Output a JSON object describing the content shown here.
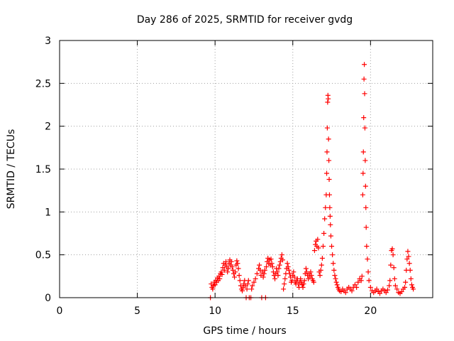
{
  "chart_data": {
    "type": "scatter",
    "title": "Day 286 of 2025, SRMTID for receiver gvdg",
    "xlabel": "GPS time / hours",
    "ylabel": "SRMTID / TECUs",
    "xlim": [
      0,
      24
    ],
    "ylim": [
      0,
      3
    ],
    "xticks": [
      0,
      5,
      10,
      15,
      20
    ],
    "yticks": [
      0,
      0.5,
      1,
      1.5,
      2,
      2.5,
      3
    ],
    "grid": true,
    "marker": "+",
    "series": [
      {
        "name": "gvdg",
        "color": "#ff0000",
        "points": [
          [
            9.7,
            0.0
          ],
          [
            9.75,
            0.16
          ],
          [
            9.8,
            0.12
          ],
          [
            9.85,
            0.1
          ],
          [
            9.9,
            0.14
          ],
          [
            9.95,
            0.18
          ],
          [
            10.0,
            0.15
          ],
          [
            10.05,
            0.2
          ],
          [
            10.1,
            0.18
          ],
          [
            10.15,
            0.23
          ],
          [
            10.2,
            0.2
          ],
          [
            10.25,
            0.25
          ],
          [
            10.3,
            0.22
          ],
          [
            10.35,
            0.28
          ],
          [
            10.4,
            0.3
          ],
          [
            10.45,
            0.27
          ],
          [
            10.5,
            0.35
          ],
          [
            10.55,
            0.4
          ],
          [
            10.6,
            0.32
          ],
          [
            10.65,
            0.38
          ],
          [
            10.7,
            0.42
          ],
          [
            10.75,
            0.36
          ],
          [
            10.8,
            0.3
          ],
          [
            10.85,
            0.34
          ],
          [
            10.9,
            0.4
          ],
          [
            10.95,
            0.44
          ],
          [
            11.0,
            0.38
          ],
          [
            11.05,
            0.42
          ],
          [
            11.1,
            0.36
          ],
          [
            11.15,
            0.32
          ],
          [
            11.2,
            0.28
          ],
          [
            11.25,
            0.24
          ],
          [
            11.3,
            0.3
          ],
          [
            11.35,
            0.38
          ],
          [
            11.4,
            0.43
          ],
          [
            11.45,
            0.4
          ],
          [
            11.5,
            0.34
          ],
          [
            11.55,
            0.26
          ],
          [
            11.6,
            0.2
          ],
          [
            11.65,
            0.14
          ],
          [
            11.7,
            0.1
          ],
          [
            11.75,
            0.08
          ],
          [
            11.8,
            0.12
          ],
          [
            11.85,
            0.16
          ],
          [
            11.9,
            0.2
          ],
          [
            11.95,
            0.14
          ],
          [
            12.0,
            0.0
          ],
          [
            12.05,
            0.1
          ],
          [
            12.1,
            0.16
          ],
          [
            12.15,
            0.2
          ],
          [
            12.2,
            0.0
          ],
          [
            12.3,
            0.0
          ],
          [
            12.35,
            0.1
          ],
          [
            12.4,
            0.14
          ],
          [
            12.5,
            0.18
          ],
          [
            12.6,
            0.22
          ],
          [
            12.7,
            0.28
          ],
          [
            12.8,
            0.34
          ],
          [
            12.85,
            0.38
          ],
          [
            12.9,
            0.32
          ],
          [
            12.95,
            0.26
          ],
          [
            13.0,
            0.0
          ],
          [
            13.05,
            0.3
          ],
          [
            13.1,
            0.24
          ],
          [
            13.15,
            0.28
          ],
          [
            13.2,
            0.32
          ],
          [
            13.25,
            0.0
          ],
          [
            13.3,
            0.36
          ],
          [
            13.35,
            0.42
          ],
          [
            13.4,
            0.46
          ],
          [
            13.45,
            0.4
          ],
          [
            13.5,
            0.44
          ],
          [
            13.55,
            0.38
          ],
          [
            13.6,
            0.45
          ],
          [
            13.65,
            0.4
          ],
          [
            13.7,
            0.36
          ],
          [
            13.75,
            0.3
          ],
          [
            13.8,
            0.26
          ],
          [
            13.85,
            0.22
          ],
          [
            13.9,
            0.28
          ],
          [
            13.95,
            0.34
          ],
          [
            14.0,
            0.3
          ],
          [
            14.05,
            0.26
          ],
          [
            14.1,
            0.34
          ],
          [
            14.15,
            0.38
          ],
          [
            14.2,
            0.42
          ],
          [
            14.25,
            0.46
          ],
          [
            14.3,
            0.5
          ],
          [
            14.35,
            0.44
          ],
          [
            14.4,
            0.1
          ],
          [
            14.45,
            0.16
          ],
          [
            14.5,
            0.22
          ],
          [
            14.55,
            0.28
          ],
          [
            14.6,
            0.34
          ],
          [
            14.65,
            0.4
          ],
          [
            14.7,
            0.36
          ],
          [
            14.75,
            0.32
          ],
          [
            14.8,
            0.28
          ],
          [
            14.85,
            0.24
          ],
          [
            14.9,
            0.18
          ],
          [
            14.95,
            0.2
          ],
          [
            15.0,
            0.26
          ],
          [
            15.05,
            0.3
          ],
          [
            15.1,
            0.24
          ],
          [
            15.15,
            0.18
          ],
          [
            15.2,
            0.16
          ],
          [
            15.25,
            0.2
          ],
          [
            15.3,
            0.22
          ],
          [
            15.35,
            0.16
          ],
          [
            15.4,
            0.12
          ],
          [
            15.45,
            0.18
          ],
          [
            15.5,
            0.22
          ],
          [
            15.55,
            0.18
          ],
          [
            15.6,
            0.15
          ],
          [
            15.65,
            0.12
          ],
          [
            15.7,
            0.16
          ],
          [
            15.75,
            0.2
          ],
          [
            15.8,
            0.28
          ],
          [
            15.85,
            0.34
          ],
          [
            15.9,
            0.3
          ],
          [
            15.95,
            0.26
          ],
          [
            16.0,
            0.22
          ],
          [
            16.05,
            0.28
          ],
          [
            16.1,
            0.24
          ],
          [
            16.15,
            0.3
          ],
          [
            16.2,
            0.26
          ],
          [
            16.25,
            0.22
          ],
          [
            16.3,
            0.2
          ],
          [
            16.35,
            0.18
          ],
          [
            16.4,
            0.55
          ],
          [
            16.45,
            0.62
          ],
          [
            16.5,
            0.66
          ],
          [
            16.55,
            0.6
          ],
          [
            16.6,
            0.68
          ],
          [
            16.65,
            0.58
          ],
          [
            16.7,
            0.3
          ],
          [
            16.75,
            0.26
          ],
          [
            16.8,
            0.32
          ],
          [
            16.85,
            0.38
          ],
          [
            16.9,
            0.46
          ],
          [
            16.95,
            0.6
          ],
          [
            17.0,
            0.75
          ],
          [
            17.05,
            0.92
          ],
          [
            17.1,
            1.05
          ],
          [
            17.15,
            1.2
          ],
          [
            17.18,
            1.45
          ],
          [
            17.2,
            1.7
          ],
          [
            17.22,
            1.98
          ],
          [
            17.24,
            2.28
          ],
          [
            17.26,
            2.36
          ],
          [
            17.28,
            2.32
          ],
          [
            17.3,
            1.85
          ],
          [
            17.32,
            1.6
          ],
          [
            17.34,
            1.38
          ],
          [
            17.36,
            1.2
          ],
          [
            17.38,
            1.05
          ],
          [
            17.4,
            0.95
          ],
          [
            17.42,
            0.85
          ],
          [
            17.45,
            0.72
          ],
          [
            17.5,
            0.6
          ],
          [
            17.55,
            0.5
          ],
          [
            17.6,
            0.4
          ],
          [
            17.65,
            0.32
          ],
          [
            17.7,
            0.26
          ],
          [
            17.75,
            0.22
          ],
          [
            17.8,
            0.18
          ],
          [
            17.85,
            0.15
          ],
          [
            17.9,
            0.12
          ],
          [
            17.95,
            0.1
          ],
          [
            18.0,
            0.08
          ],
          [
            18.1,
            0.07
          ],
          [
            18.2,
            0.1
          ],
          [
            18.3,
            0.08
          ],
          [
            18.4,
            0.06
          ],
          [
            18.5,
            0.1
          ],
          [
            18.6,
            0.12
          ],
          [
            18.7,
            0.1
          ],
          [
            18.8,
            0.08
          ],
          [
            18.9,
            0.12
          ],
          [
            19.0,
            0.15
          ],
          [
            19.1,
            0.12
          ],
          [
            19.2,
            0.18
          ],
          [
            19.3,
            0.22
          ],
          [
            19.4,
            0.2
          ],
          [
            19.45,
            0.25
          ],
          [
            19.5,
            1.2
          ],
          [
            19.52,
            1.45
          ],
          [
            19.54,
            1.7
          ],
          [
            19.56,
            2.1
          ],
          [
            19.58,
            2.55
          ],
          [
            19.6,
            2.72
          ],
          [
            19.62,
            2.38
          ],
          [
            19.64,
            1.98
          ],
          [
            19.66,
            1.6
          ],
          [
            19.68,
            1.3
          ],
          [
            19.7,
            1.05
          ],
          [
            19.72,
            0.82
          ],
          [
            19.75,
            0.6
          ],
          [
            19.8,
            0.45
          ],
          [
            19.85,
            0.3
          ],
          [
            19.9,
            0.2
          ],
          [
            20.0,
            0.12
          ],
          [
            20.1,
            0.08
          ],
          [
            20.2,
            0.06
          ],
          [
            20.3,
            0.08
          ],
          [
            20.4,
            0.1
          ],
          [
            20.5,
            0.07
          ],
          [
            20.6,
            0.05
          ],
          [
            20.7,
            0.08
          ],
          [
            20.8,
            0.1
          ],
          [
            20.9,
            0.08
          ],
          [
            21.0,
            0.06
          ],
          [
            21.1,
            0.09
          ],
          [
            21.2,
            0.14
          ],
          [
            21.25,
            0.2
          ],
          [
            21.3,
            0.38
          ],
          [
            21.35,
            0.55
          ],
          [
            21.4,
            0.57
          ],
          [
            21.45,
            0.5
          ],
          [
            21.5,
            0.35
          ],
          [
            21.55,
            0.22
          ],
          [
            21.6,
            0.14
          ],
          [
            21.7,
            0.1
          ],
          [
            21.8,
            0.06
          ],
          [
            21.9,
            0.05
          ],
          [
            22.0,
            0.07
          ],
          [
            22.1,
            0.1
          ],
          [
            22.2,
            0.12
          ],
          [
            22.25,
            0.18
          ],
          [
            22.3,
            0.32
          ],
          [
            22.35,
            0.45
          ],
          [
            22.4,
            0.54
          ],
          [
            22.45,
            0.48
          ],
          [
            22.5,
            0.4
          ],
          [
            22.55,
            0.32
          ],
          [
            22.6,
            0.22
          ],
          [
            22.65,
            0.15
          ],
          [
            22.7,
            0.12
          ],
          [
            22.75,
            0.1
          ]
        ]
      }
    ]
  }
}
